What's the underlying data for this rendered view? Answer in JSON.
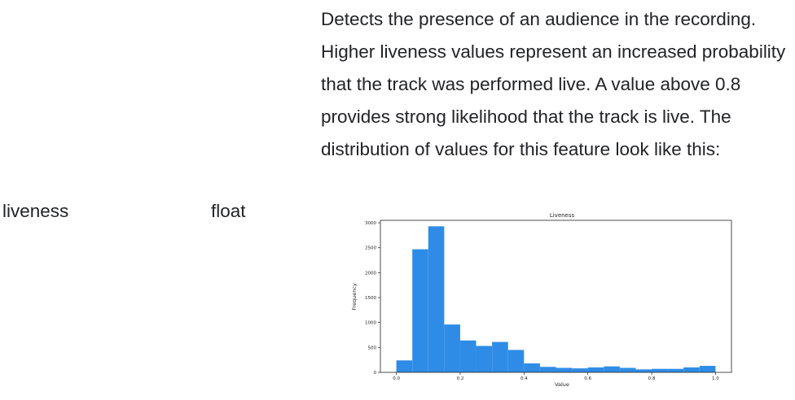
{
  "row": {
    "description": "Detects the presence of an audience in the recording. Higher liveness values represent an increased probability that the track was performed live. A value above 0.8 provides strong likelihood that the track is live. The distribution of values for this feature look like this:",
    "field_name": "liveness",
    "field_type": "float"
  },
  "chart_data": {
    "type": "bar",
    "title": "Liveness",
    "xlabel": "Value",
    "ylabel": "Frequency",
    "bar_color": "#2f8ce6",
    "xlim": [
      -0.05,
      1.05
    ],
    "ylim": [
      0,
      3050
    ],
    "xticks": [
      "0.0",
      "0.2",
      "0.4",
      "0.6",
      "0.8",
      "1.0"
    ],
    "yticks": [
      "0",
      "500",
      "1000",
      "1500",
      "2000",
      "2500",
      "3000"
    ],
    "bin_width": 0.05,
    "bin_starts": [
      0.0,
      0.05,
      0.1,
      0.15,
      0.2,
      0.25,
      0.3,
      0.35,
      0.4,
      0.45,
      0.5,
      0.55,
      0.6,
      0.65,
      0.7,
      0.75,
      0.8,
      0.85,
      0.9,
      0.95
    ],
    "values": [
      240,
      2470,
      2930,
      960,
      640,
      530,
      610,
      450,
      180,
      110,
      90,
      80,
      100,
      120,
      90,
      60,
      70,
      70,
      100,
      130
    ]
  }
}
